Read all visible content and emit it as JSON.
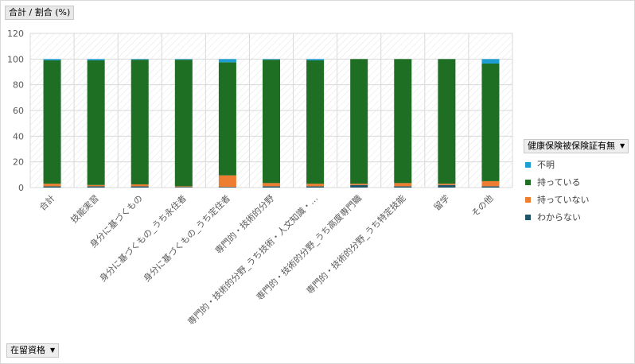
{
  "header": {
    "value_button_label": "合計 / 割合 (%)"
  },
  "legend": {
    "button_label": "健康保険被保険証有無"
  },
  "axis_field": {
    "button_label": "在留資格"
  },
  "colors": {
    "unknown": "#1f9ed1",
    "have": "#1e6e24",
    "not_have": "#ed7d31",
    "dont_know": "#1f5568",
    "grid": "#d9d9d9"
  },
  "chart_data": {
    "type": "bar",
    "stacked": true,
    "categories": [
      "合計",
      "技能実習",
      "身分に基づくもの",
      "身分に基づくもの_うち永住者",
      "身分に基づくもの_うち定住者",
      "専門的・技術的分野",
      "専門的・技術的分野_うち技術・人文知識・…",
      "専門的・技術的分野_うち高度専門職",
      "専門的・技術的分野_うち特定技能",
      "留学",
      "その他"
    ],
    "series": [
      {
        "name": "わからない",
        "color_key": "dont_know",
        "values": [
          1,
          1,
          1,
          0.5,
          0.5,
          1,
          1,
          2,
          1,
          2,
          1
        ]
      },
      {
        "name": "持っていない",
        "color_key": "not_have",
        "values": [
          2,
          1,
          1.5,
          0.5,
          9,
          2.5,
          2,
          1,
          2.5,
          1,
          4
        ]
      },
      {
        "name": "持っている",
        "color_key": "have",
        "values": [
          96,
          97,
          97,
          98.5,
          88,
          96,
          96,
          97,
          96.5,
          97,
          91.5
        ]
      },
      {
        "name": "不明",
        "color_key": "unknown",
        "values": [
          1,
          1,
          0.5,
          0.5,
          2.5,
          0.5,
          1,
          0,
          0,
          0,
          3.5
        ]
      }
    ],
    "yticks": [
      0,
      20,
      40,
      60,
      80,
      100,
      120
    ],
    "ylim": [
      0,
      120
    ],
    "grid": true,
    "legend_position": "right"
  }
}
